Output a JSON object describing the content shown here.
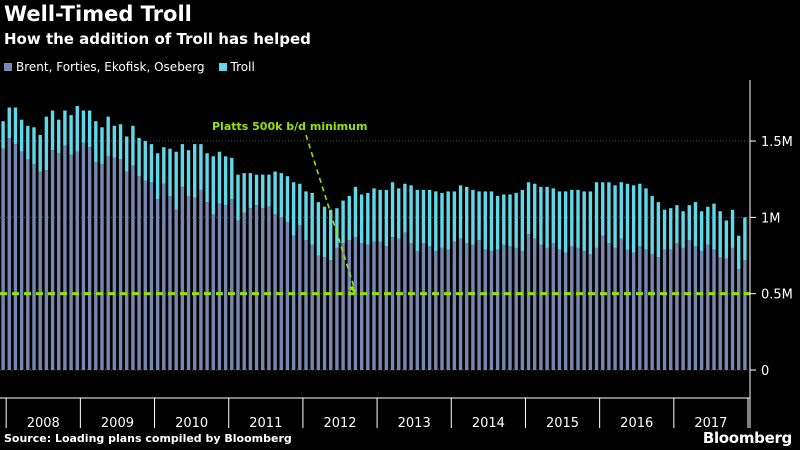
{
  "title": "Well-Timed Troll",
  "subtitle": "How the addition of Troll has helped",
  "source": "Source: Loading plans compiled by Bloomberg",
  "logo": "Bloomberg",
  "colors": {
    "base": "#7688b0",
    "troll": "#5fd8ea",
    "threshold": "#99e200",
    "grid": "#555555",
    "axis": "#ffffff"
  },
  "chart_data": {
    "type": "bar",
    "stacked": true,
    "legend_position": "top-left",
    "x": [
      "2007-12",
      "2008-01",
      "2008-02",
      "2008-03",
      "2008-04",
      "2008-05",
      "2008-06",
      "2008-07",
      "2008-08",
      "2008-09",
      "2008-10",
      "2008-11",
      "2008-12",
      "2009-01",
      "2009-02",
      "2009-03",
      "2009-04",
      "2009-05",
      "2009-06",
      "2009-07",
      "2009-08",
      "2009-09",
      "2009-10",
      "2009-11",
      "2009-12",
      "2010-01",
      "2010-02",
      "2010-03",
      "2010-04",
      "2010-05",
      "2010-06",
      "2010-07",
      "2010-08",
      "2010-09",
      "2010-10",
      "2010-11",
      "2010-12",
      "2011-01",
      "2011-02",
      "2011-03",
      "2011-04",
      "2011-05",
      "2011-06",
      "2011-07",
      "2011-08",
      "2011-09",
      "2011-10",
      "2011-11",
      "2011-12",
      "2012-01",
      "2012-02",
      "2012-03",
      "2012-04",
      "2012-05",
      "2012-06",
      "2012-07",
      "2012-08",
      "2012-09",
      "2012-10",
      "2012-11",
      "2012-12",
      "2013-01",
      "2013-02",
      "2013-03",
      "2013-04",
      "2013-05",
      "2013-06",
      "2013-07",
      "2013-08",
      "2013-09",
      "2013-10",
      "2013-11",
      "2013-12",
      "2014-01",
      "2014-02",
      "2014-03",
      "2014-04",
      "2014-05",
      "2014-06",
      "2014-07",
      "2014-08",
      "2014-09",
      "2014-10",
      "2014-11",
      "2014-12",
      "2015-01",
      "2015-02",
      "2015-03",
      "2015-04",
      "2015-05",
      "2015-06",
      "2015-07",
      "2015-08",
      "2015-09",
      "2015-10",
      "2015-11",
      "2015-12",
      "2016-01",
      "2016-02",
      "2016-03",
      "2016-04",
      "2016-05",
      "2016-06",
      "2016-07",
      "2016-08",
      "2016-09",
      "2016-10",
      "2016-11",
      "2016-12",
      "2017-01",
      "2017-02",
      "2017-03",
      "2017-04",
      "2017-05",
      "2017-06",
      "2017-07",
      "2017-08",
      "2017-09",
      "2017-10",
      "2017-11",
      "2017-12"
    ],
    "series": [
      {
        "name": "Brent, Forties, Ekofisk, Oseberg",
        "values": [
          1.45,
          1.52,
          1.48,
          1.43,
          1.38,
          1.35,
          1.3,
          1.31,
          1.44,
          1.42,
          1.47,
          1.41,
          1.43,
          1.49,
          1.46,
          1.36,
          1.35,
          1.4,
          1.39,
          1.38,
          1.3,
          1.34,
          1.27,
          1.24,
          1.23,
          1.12,
          1.22,
          1.14,
          1.05,
          1.2,
          1.14,
          1.13,
          1.18,
          1.1,
          1.02,
          1.09,
          1.08,
          1.12,
          0.98,
          1.03,
          1.06,
          1.08,
          1.06,
          1.07,
          1.02,
          1.0,
          0.97,
          0.88,
          0.95,
          0.85,
          0.82,
          0.75,
          0.74,
          0.72,
          0.8,
          0.83,
          0.85,
          0.87,
          0.83,
          0.82,
          0.84,
          0.84,
          0.81,
          0.87,
          0.86,
          0.9,
          0.83,
          0.78,
          0.83,
          0.81,
          0.78,
          0.8,
          0.79,
          0.84,
          0.86,
          0.83,
          0.82,
          0.85,
          0.79,
          0.78,
          0.79,
          0.82,
          0.81,
          0.8,
          0.78,
          0.89,
          0.86,
          0.82,
          0.8,
          0.83,
          0.79,
          0.77,
          0.81,
          0.8,
          0.78,
          0.76,
          0.8,
          0.88,
          0.83,
          0.8,
          0.86,
          0.79,
          0.77,
          0.81,
          0.79,
          0.76,
          0.74,
          0.79,
          0.79,
          0.83,
          0.8,
          0.85,
          0.81,
          0.78,
          0.82,
          0.79,
          0.74,
          0.73,
          0.8,
          0.66,
          0.72
        ]
      },
      {
        "name": "Troll",
        "values": [
          0.18,
          0.2,
          0.24,
          0.21,
          0.22,
          0.24,
          0.24,
          0.35,
          0.26,
          0.22,
          0.23,
          0.26,
          0.3,
          0.21,
          0.24,
          0.27,
          0.24,
          0.26,
          0.21,
          0.23,
          0.23,
          0.26,
          0.25,
          0.26,
          0.25,
          0.3,
          0.24,
          0.31,
          0.38,
          0.28,
          0.3,
          0.35,
          0.3,
          0.32,
          0.38,
          0.34,
          0.32,
          0.27,
          0.3,
          0.26,
          0.23,
          0.2,
          0.22,
          0.21,
          0.28,
          0.29,
          0.3,
          0.35,
          0.27,
          0.32,
          0.34,
          0.35,
          0.33,
          0.33,
          0.26,
          0.28,
          0.29,
          0.33,
          0.32,
          0.34,
          0.35,
          0.34,
          0.37,
          0.36,
          0.33,
          0.32,
          0.38,
          0.4,
          0.35,
          0.37,
          0.39,
          0.36,
          0.38,
          0.33,
          0.35,
          0.37,
          0.36,
          0.32,
          0.38,
          0.39,
          0.35,
          0.33,
          0.34,
          0.36,
          0.4,
          0.34,
          0.36,
          0.38,
          0.4,
          0.36,
          0.38,
          0.4,
          0.37,
          0.38,
          0.39,
          0.41,
          0.43,
          0.35,
          0.4,
          0.41,
          0.37,
          0.43,
          0.44,
          0.41,
          0.4,
          0.38,
          0.36,
          0.26,
          0.27,
          0.25,
          0.24,
          0.23,
          0.29,
          0.26,
          0.25,
          0.3,
          0.3,
          0.25,
          0.25,
          0.22,
          0.28
        ]
      }
    ],
    "ylim": [
      0,
      1.9
    ],
    "y_ticks": [
      0,
      0.5,
      1.0,
      1.5
    ],
    "y_tick_labels": [
      "0",
      "0.5M",
      "1M",
      "1.5M"
    ],
    "x_tick_labels": [
      "2008",
      "2009",
      "2010",
      "2011",
      "2012",
      "2013",
      "2014",
      "2015",
      "2016",
      "2017"
    ],
    "grid": true,
    "threshold": {
      "value": 0.5
    },
    "annotation": {
      "text": "Platts 500k b/d minimum",
      "x": "2012-09",
      "y": 0.5
    }
  }
}
